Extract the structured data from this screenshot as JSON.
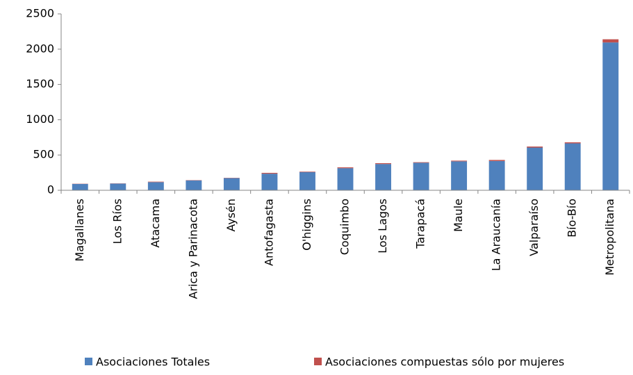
{
  "chart_data": {
    "type": "stacked_bar",
    "categories": [
      "Magallanes",
      "Los Ríos",
      "Atacama",
      "Arica y Parinacota",
      "Aysén",
      "Antofagasta",
      "O'higgins",
      "Coquimbo",
      "Los Lagos",
      "Tarapacá",
      "Maule",
      "La Araucanía",
      "Valparaíso",
      "Bío-Bío",
      "Metropolitana"
    ],
    "series": [
      {
        "name": "Asociaciones Totales",
        "color": "#4f81bd",
        "values": [
          90,
          95,
          115,
          140,
          172,
          235,
          258,
          313,
          372,
          390,
          410,
          415,
          605,
          665,
          2095
        ]
      },
      {
        "name": "Asociaciones compuestas sólo por mujeres",
        "color": "#c0504d",
        "values": [
          3,
          3,
          7,
          4,
          4,
          12,
          7,
          12,
          12,
          8,
          10,
          15,
          15,
          15,
          45
        ]
      }
    ],
    "ylim": [
      0,
      2500
    ],
    "yticks": [
      0,
      500,
      1000,
      1500,
      2000,
      2500
    ],
    "grid": false,
    "legend": "bottom"
  }
}
